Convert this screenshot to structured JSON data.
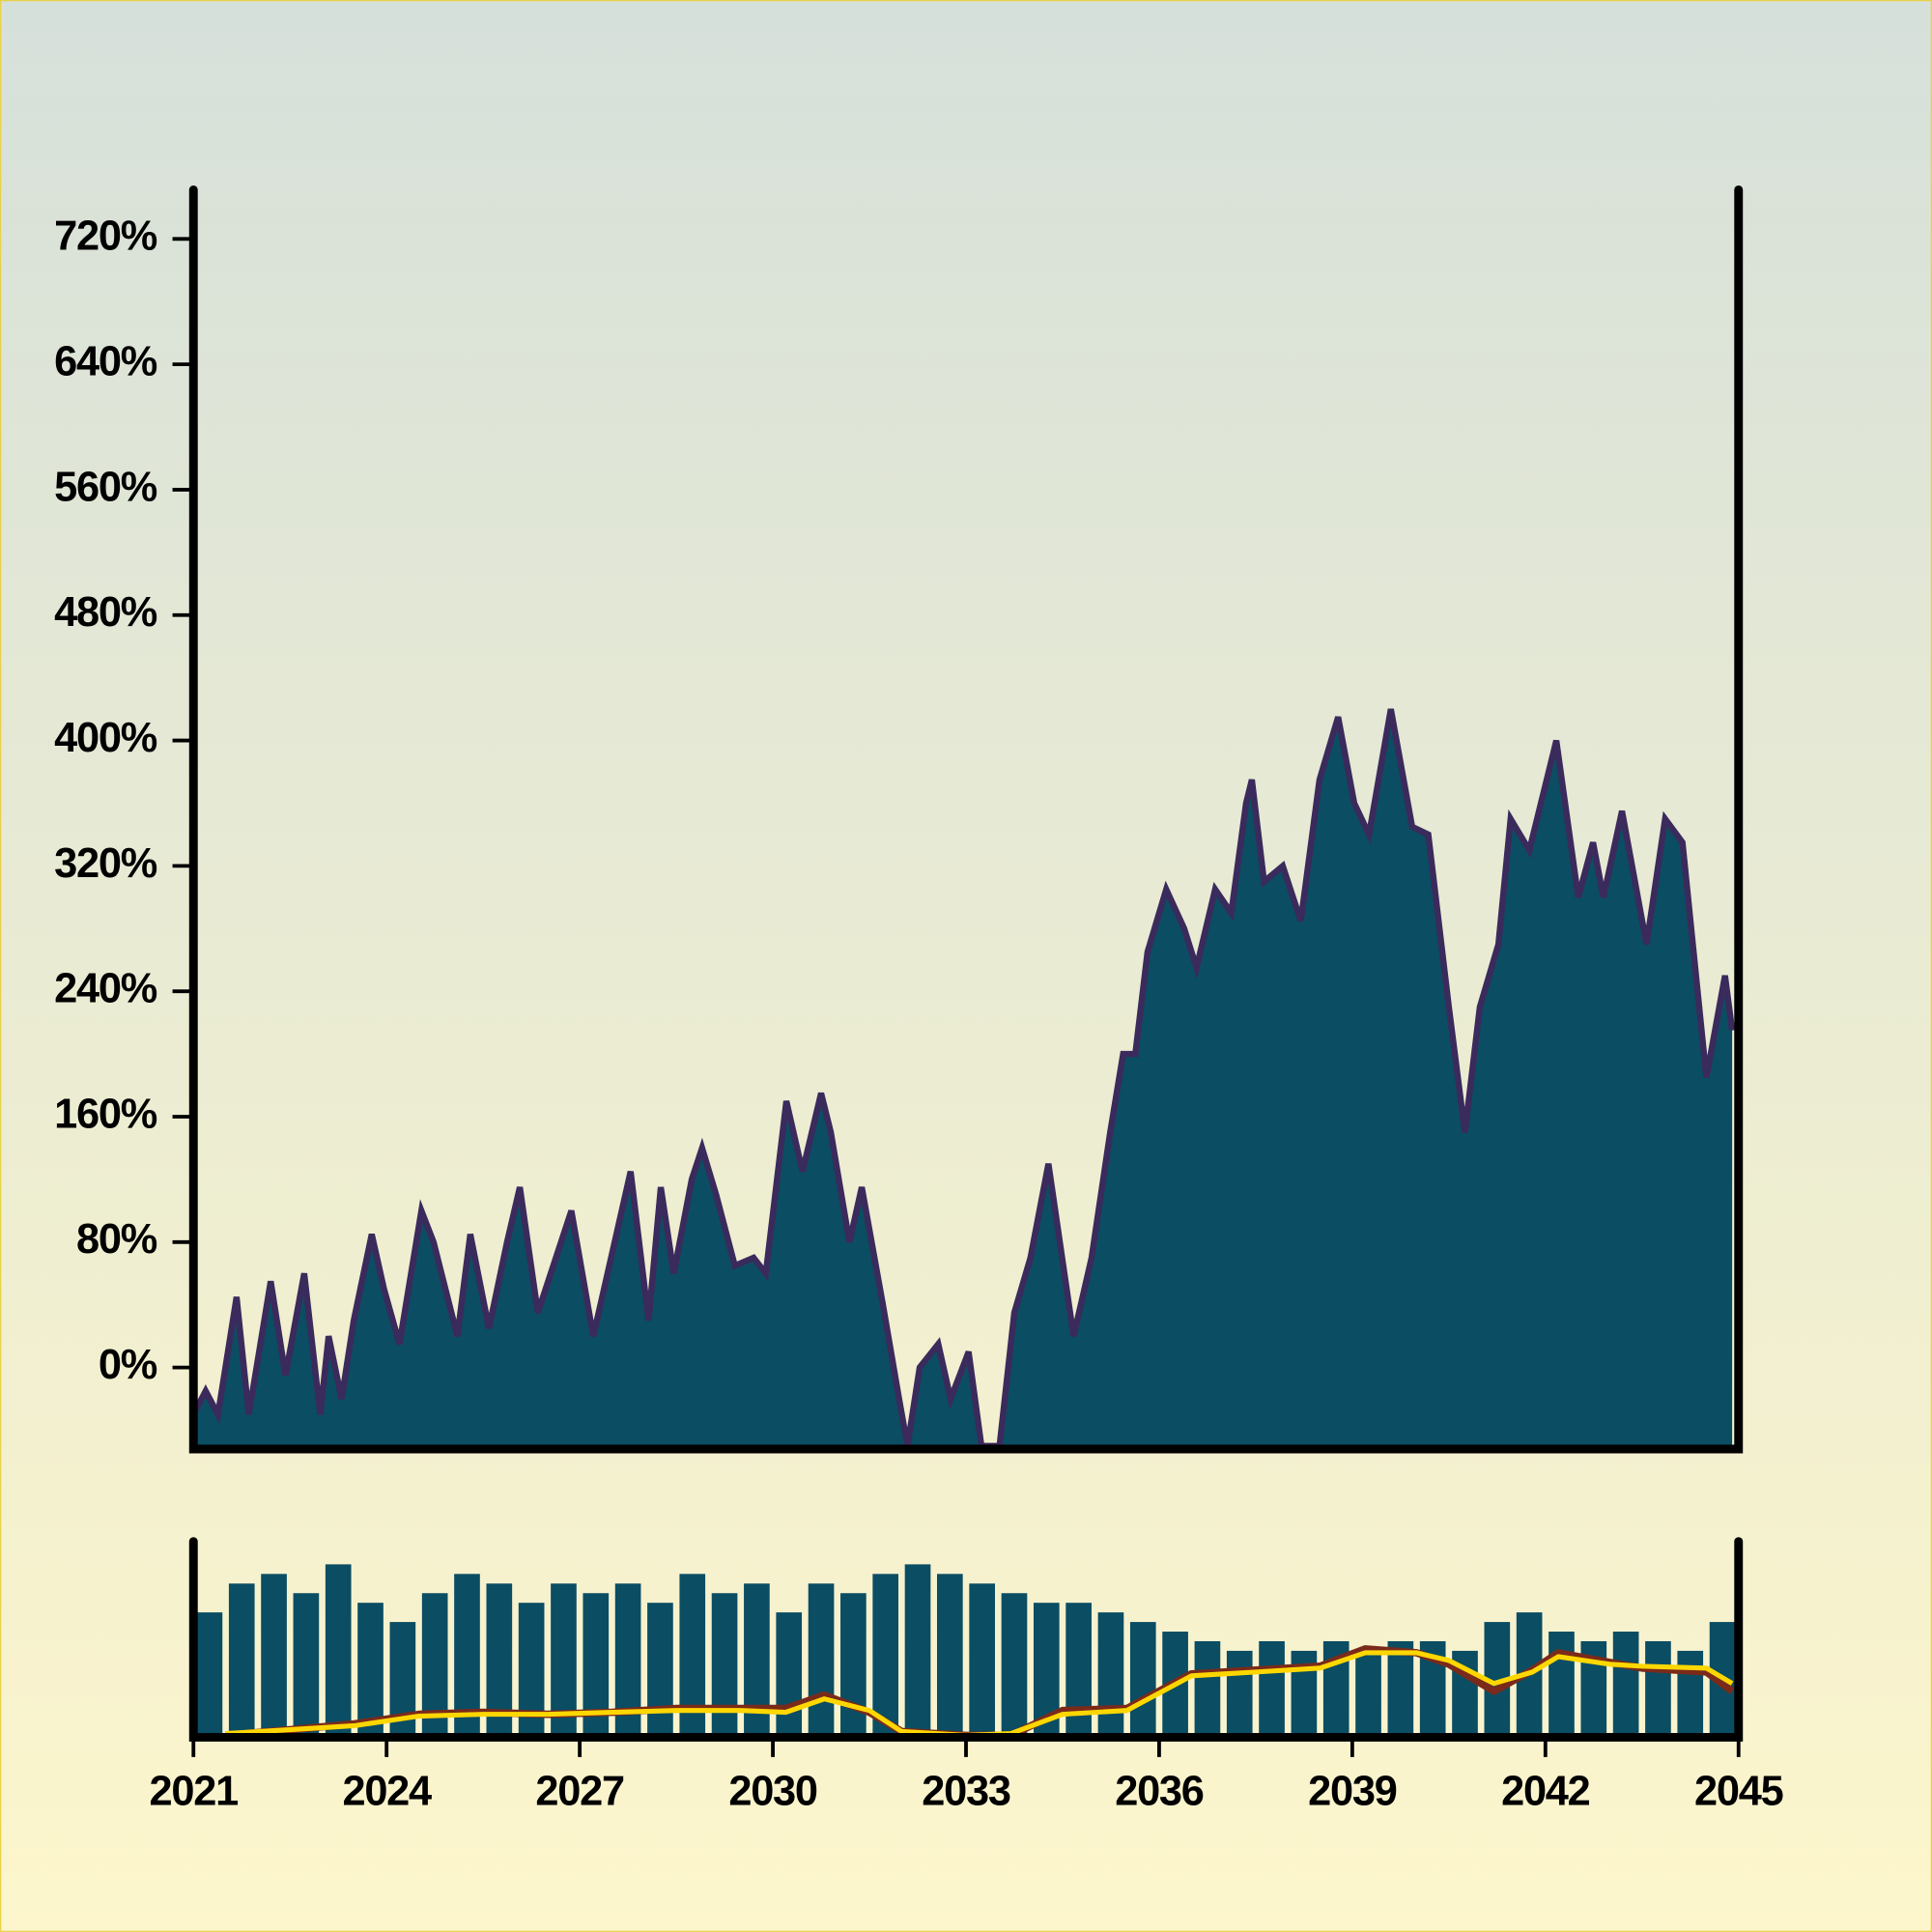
{
  "chart_data": [
    {
      "type": "area",
      "color": "#0b4d63",
      "line_color": "#3b2a5c",
      "x": [
        2021.0,
        2021.19,
        2021.38,
        2021.67,
        2021.86,
        2022.2,
        2022.43,
        2022.72,
        2022.97,
        2023.1,
        2023.3,
        2023.49,
        2023.77,
        2023.96,
        2024.2,
        2024.54,
        2024.73,
        2025.1,
        2025.3,
        2025.59,
        2025.87,
        2026.07,
        2026.35,
        2026.87,
        2027.21,
        2027.79,
        2028.07,
        2028.26,
        2028.46,
        2028.74,
        2028.9,
        2029.12,
        2029.41,
        2029.7,
        2029.89,
        2030.21,
        2030.46,
        2030.75,
        2030.9,
        2031.19,
        2031.38,
        2031.71,
        2031.96,
        2032.09,
        2032.28,
        2032.57,
        2032.76,
        2033.04,
        2033.24,
        2033.52,
        2033.75,
        2034.0,
        2034.28,
        2034.67,
        2034.95,
        2035.24,
        2035.44,
        2035.63,
        2035.82,
        2036.11,
        2036.39,
        2036.58,
        2036.87,
        2037.12,
        2037.35,
        2037.44,
        2037.63,
        2037.92,
        2038.2,
        2038.49,
        2038.78,
        2039.03,
        2039.26,
        2039.6,
        2039.93,
        2040.18,
        2040.5,
        2040.75,
        2040.98,
        2041.27,
        2041.46,
        2041.75,
        2042.17,
        2042.51,
        2042.74,
        2042.9,
        2043.19,
        2043.57,
        2043.86,
        2044.13,
        2044.5,
        2044.79,
        2044.9
      ],
      "values": [
        -30,
        -15,
        -30,
        45,
        -30,
        55,
        -5,
        60,
        -30,
        20,
        -20,
        30,
        85,
        50,
        15,
        100,
        80,
        20,
        85,
        25,
        80,
        115,
        35,
        100,
        20,
        125,
        30,
        115,
        60,
        120,
        140,
        110,
        65,
        70,
        60,
        170,
        125,
        175,
        150,
        80,
        115,
        40,
        -20,
        -50,
        0,
        15,
        -20,
        10,
        -50,
        -50,
        35,
        70,
        130,
        20,
        70,
        150,
        200,
        200,
        265,
        305,
        280,
        255,
        305,
        290,
        360,
        375,
        310,
        320,
        285,
        375,
        415,
        360,
        340,
        420,
        345,
        340,
        230,
        150,
        230,
        270,
        350,
        330,
        400,
        300,
        335,
        300,
        355,
        270,
        350,
        335,
        185,
        250,
        215
      ],
      "xlim": [
        2021,
        2045
      ],
      "ylim": [
        -52,
        749
      ],
      "yticks": [
        {
          "value": 0,
          "label": "0%"
        },
        {
          "value": 80,
          "label": "80%"
        },
        {
          "value": 160,
          "label": "160%"
        },
        {
          "value": 240,
          "label": "240%"
        },
        {
          "value": 320,
          "label": "320%"
        },
        {
          "value": 400,
          "label": "400%"
        },
        {
          "value": 480,
          "label": "480%"
        },
        {
          "value": 560,
          "label": "560%"
        },
        {
          "value": 640,
          "label": "640%"
        },
        {
          "value": 720,
          "label": "720%"
        }
      ]
    },
    {
      "type": "bar",
      "color": "#0b4d63",
      "x": [
        2021.0,
        2021.5,
        2022.0,
        2022.5,
        2023.0,
        2023.5,
        2024.0,
        2024.5,
        2025.0,
        2025.5,
        2026.0,
        2026.5,
        2027.0,
        2027.5,
        2028.0,
        2028.5,
        2029.0,
        2029.5,
        2030.0,
        2030.5,
        2031.0,
        2031.5,
        2032.0,
        2032.5,
        2033.0,
        2033.5,
        2034.0,
        2034.5,
        2035.0,
        2035.5,
        2036.0,
        2036.5,
        2037.0,
        2037.5,
        2038.0,
        2038.5,
        2039.0,
        2039.5,
        2040.0,
        2040.5,
        2041.0,
        2041.5,
        2042.0,
        2042.5,
        2043.0,
        2043.5,
        2044.0,
        2044.5
      ],
      "values": [
        65,
        80,
        85,
        75,
        90,
        70,
        60,
        75,
        85,
        80,
        70,
        80,
        75,
        80,
        70,
        85,
        75,
        80,
        65,
        80,
        75,
        85,
        90,
        85,
        80,
        75,
        70,
        70,
        65,
        60,
        55,
        50,
        45,
        50,
        45,
        50,
        45,
        50,
        50,
        45,
        60,
        65,
        55,
        50,
        55,
        50,
        45,
        60
      ],
      "overlays": [
        {
          "type": "line",
          "color": "#7a2a1a",
          "x": [
            2021.5,
            2022.5,
            2023.5,
            2024.5,
            2025.5,
            2026.5,
            2027.5,
            2028.5,
            2029.5,
            2030.2,
            2030.8,
            2031.5,
            2032.0,
            2033.0,
            2033.7,
            2034.5,
            2035.5,
            2036.5,
            2037.5,
            2038.5,
            2039.2,
            2040.0,
            2040.5,
            2041.2,
            2041.8,
            2042.2,
            2043.0,
            2043.5,
            2044.5,
            2044.9
          ],
          "values": [
            1,
            4,
            7,
            12,
            13,
            12,
            13,
            15,
            15,
            15,
            22,
            13,
            3,
            1,
            1,
            14,
            15,
            33,
            35,
            37,
            46,
            44,
            38,
            24,
            35,
            44,
            39,
            36,
            34,
            24
          ]
        },
        {
          "type": "line",
          "color": "#ffd700",
          "x": [
            2021.5,
            2022.5,
            2023.5,
            2024.5,
            2025.5,
            2026.5,
            2027.5,
            2028.5,
            2029.5,
            2030.2,
            2030.8,
            2031.5,
            2032.0,
            2033.0,
            2033.7,
            2034.5,
            2035.5,
            2036.5,
            2037.5,
            2038.5,
            2039.2,
            2040.0,
            2040.5,
            2041.2,
            2041.8,
            2042.2,
            2043.0,
            2043.5,
            2044.5,
            2044.9
          ],
          "values": [
            2,
            4,
            6,
            11,
            12,
            12,
            13,
            14,
            14,
            13,
            20,
            14,
            3,
            1,
            2,
            12,
            14,
            32,
            34,
            36,
            44,
            44,
            40,
            28,
            34,
            42,
            38,
            37,
            36,
            28
          ]
        }
      ],
      "xlim": [
        2021,
        2045
      ],
      "ylim": [
        0,
        100
      ],
      "xticks": [
        2021,
        2024,
        2027,
        2030,
        2033,
        2036,
        2039,
        2042,
        2045
      ]
    }
  ]
}
